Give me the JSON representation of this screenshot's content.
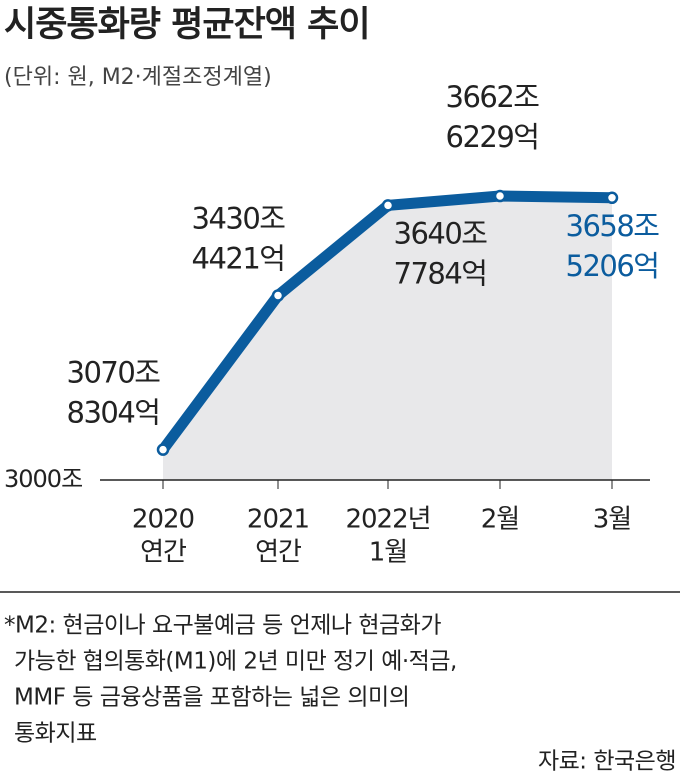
{
  "chart_data": {
    "type": "line",
    "title": "시중통화량 평균잔액 추이",
    "subtitle": "(단위: 원, M2·계절조정계열)",
    "categories": [
      [
        "2020",
        "연간"
      ],
      [
        "2021",
        "연간"
      ],
      [
        "2022년",
        "1월"
      ],
      [
        "2월"
      ],
      [
        "3월"
      ]
    ],
    "values": [
      3070.8304,
      3430.4421,
      3640.7784,
      3662.6229,
      3658.5206
    ],
    "value_labels": [
      [
        "3070조",
        "8304억"
      ],
      [
        "3430조",
        "4421억"
      ],
      [
        "3640조",
        "7784억"
      ],
      [
        "3662조",
        "6229억"
      ],
      [
        "3658조",
        "5206억"
      ]
    ],
    "value_label_colors": [
      "#222222",
      "#222222",
      "#222222",
      "#222222",
      "#0b5c9e"
    ],
    "color": "#0b5c9e",
    "area_color": "#e8e8ea",
    "ylim": [
      3000,
      3700
    ],
    "yticks": [
      {
        "value": 3000,
        "label": "3000조"
      }
    ],
    "note": [
      "*M2: 현금이나 요구불예금 등 언제나 현금화가",
      "가능한 협의통화(M1)에 2년 미만 정기 예·적금,",
      "MMF 등 금융상품을 포함하는 넓은 의미의",
      "통화지표"
    ],
    "source": "자료: 한국은행"
  }
}
